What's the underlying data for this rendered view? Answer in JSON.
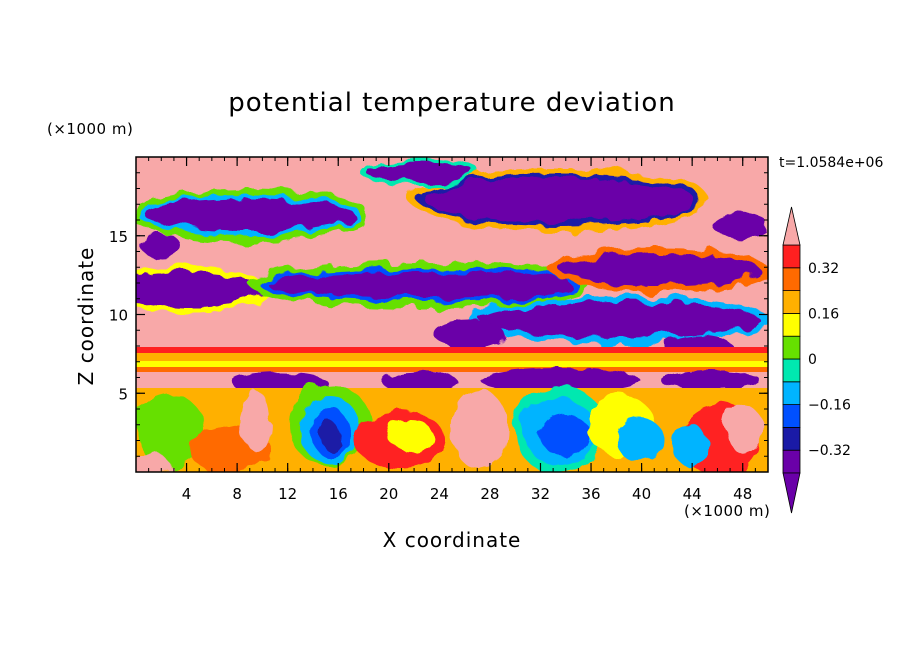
{
  "chart_data": {
    "type": "heatmap",
    "title": "potential temperature deviation",
    "xlabel": "X coordinate",
    "ylabel": "Z coordinate",
    "x_scale_note": "(×1000 m)",
    "y_scale_note": "(×1000 m)",
    "timestamp": "t=1.0584e+06",
    "xlim": [
      0,
      50
    ],
    "ylim": [
      0,
      20
    ],
    "x_ticks": [
      4,
      8,
      12,
      16,
      20,
      24,
      28,
      32,
      36,
      40,
      44,
      48
    ],
    "y_ticks": [
      5,
      10,
      15
    ],
    "colorbar": {
      "levels": [
        -0.4,
        -0.32,
        -0.24,
        -0.16,
        -0.08,
        0,
        0.08,
        0.16,
        0.24,
        0.32,
        0.4
      ],
      "labels": [
        "0.32",
        "0.16",
        "0",
        "-0.16",
        "-0.32"
      ],
      "label_values": [
        0.32,
        0.16,
        0,
        -0.16,
        -0.32
      ],
      "colors": [
        "#6a00a8",
        "#1a1aa6",
        "#0050ff",
        "#00b4ff",
        "#00e8b0",
        "#66e000",
        "#ffff00",
        "#ffb000",
        "#ff6a00",
        "#ff2020",
        "#f8a8a8"
      ],
      "extend": "both"
    },
    "field_regions": [
      {
        "band": "upper",
        "z_range": [
          8,
          20
        ],
        "pattern": "alternating large purple (negative) and pink (positive) blobs with thin multicolor fringes"
      },
      {
        "band": "middle",
        "z_range": [
          5.5,
          8
        ],
        "pattern": "horizontal layered stripes: red, orange, yellow, pink"
      },
      {
        "band": "lower",
        "z_range": [
          0,
          5.5
        ],
        "pattern": "turbulent mixed field with blue/cyan vortices near x=14-20 and x=32-40"
      }
    ]
  }
}
